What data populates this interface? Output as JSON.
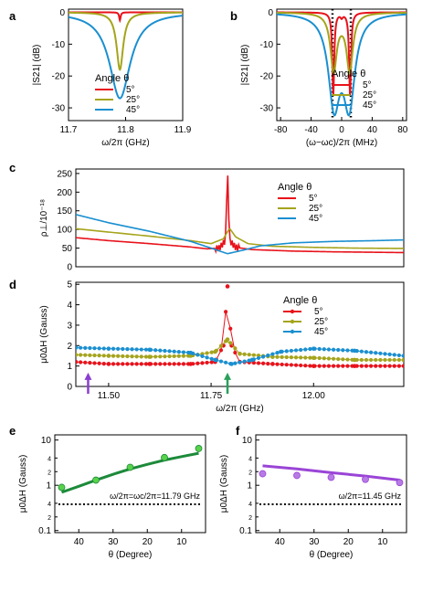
{
  "colors": {
    "red": "#e8121b",
    "olive": "#a5a41c",
    "blue": "#1a8fd0",
    "green": "#1c8a3a",
    "green_light": "#58d24a",
    "purple": "#9a45d6",
    "purple_light": "#b77be6",
    "arrow_purple": "#8a3fd0",
    "arrow_green": "#2aa05a"
  },
  "chart_data": [
    {
      "id": "a",
      "panel_label": "a",
      "type": "line",
      "xlabel": "ω/2π (GHz)",
      "ylabel": "|S21| (dB)",
      "xlim": [
        11.7,
        11.9
      ],
      "ylim": [
        -34,
        1
      ],
      "xticks": [
        "11.7",
        "11.8",
        "11.9"
      ],
      "yticks": [
        "0",
        "-10",
        "-20",
        "-30"
      ],
      "legend": {
        "title": "Angle θ",
        "entries": [
          "5°",
          "25°",
          "45°"
        ],
        "position": "bottom-right"
      },
      "series": [
        {
          "name": "5°",
          "color": "red",
          "curve": {
            "kind": "dip",
            "center": 11.79,
            "depth": -2.5,
            "width": 0.0015
          }
        },
        {
          "name": "25°",
          "color": "olive",
          "curve": {
            "kind": "dip",
            "center": 11.79,
            "depth": -18,
            "width": 0.007
          }
        },
        {
          "name": "45°",
          "color": "blue",
          "curve": {
            "kind": "dip",
            "center": 11.79,
            "depth": -27,
            "width": 0.022
          }
        }
      ]
    },
    {
      "id": "b",
      "panel_label": "b",
      "type": "line",
      "xlabel": "(ω−ωc)/2π (MHz)",
      "ylabel": "|S21| (dB)",
      "xlim": [
        -85,
        85
      ],
      "ylim": [
        -34,
        1
      ],
      "xticks": [
        "-80",
        "-40",
        "0",
        "40",
        "80"
      ],
      "yticks": [
        "0",
        "-10",
        "-20",
        "-30"
      ],
      "legend": {
        "title": "Angle θ",
        "entries": [
          "5°",
          "25°",
          "45°"
        ],
        "position": "bottom-right"
      },
      "dotted_lines_x": [
        -12,
        12
      ],
      "series": [
        {
          "name": "5°",
          "color": "red",
          "curve": {
            "kind": "double",
            "split": 11,
            "depth": -26,
            "width": 1.5
          }
        },
        {
          "name": "25°",
          "color": "olive",
          "curve": {
            "kind": "double",
            "split": 10.5,
            "depth": -18,
            "width": 5
          }
        },
        {
          "name": "45°",
          "color": "blue",
          "curve": {
            "kind": "double",
            "split": 10,
            "depth": -27,
            "width": 9
          }
        }
      ]
    },
    {
      "id": "c",
      "panel_label": "c",
      "type": "line",
      "xlabel": "",
      "ylabel": "ρ⊥/10⁻¹⁸",
      "xlim": [
        11.42,
        12.22
      ],
      "ylim": [
        0,
        262
      ],
      "xticks": [],
      "yticks": [
        "0",
        "50",
        "100",
        "150",
        "200",
        "250"
      ],
      "legend": {
        "title": "Angle θ",
        "entries": [
          "5°",
          "25°",
          "45°"
        ],
        "position": "top-right"
      },
      "series": [
        {
          "name": "5°",
          "color": "red",
          "points": [
            [
              11.42,
              78
            ],
            [
              11.5,
              70
            ],
            [
              11.6,
              62
            ],
            [
              11.7,
              53
            ],
            [
              11.74,
              48
            ],
            [
              11.77,
              50
            ],
            [
              11.785,
              70
            ],
            [
              11.79,
              262
            ],
            [
              11.795,
              70
            ],
            [
              11.81,
              52
            ],
            [
              11.85,
              46
            ],
            [
              11.95,
              42
            ],
            [
              12.05,
              40
            ],
            [
              12.22,
              38
            ]
          ]
        },
        {
          "name": "25°",
          "color": "olive",
          "points": [
            [
              11.42,
              102
            ],
            [
              11.5,
              93
            ],
            [
              11.6,
              82
            ],
            [
              11.7,
              70
            ],
            [
              11.75,
              62
            ],
            [
              11.78,
              75
            ],
            [
              11.795,
              103
            ],
            [
              11.81,
              80
            ],
            [
              11.84,
              62
            ],
            [
              11.9,
              55
            ],
            [
              12.0,
              52
            ],
            [
              12.1,
              50
            ],
            [
              12.22,
              49
            ]
          ]
        },
        {
          "name": "45°",
          "color": "blue",
          "points": [
            [
              11.42,
              140
            ],
            [
              11.5,
              118
            ],
            [
              11.6,
              95
            ],
            [
              11.7,
              68
            ],
            [
              11.75,
              50
            ],
            [
              11.79,
              35
            ],
            [
              11.83,
              45
            ],
            [
              11.87,
              56
            ],
            [
              11.95,
              64
            ],
            [
              12.05,
              68
            ],
            [
              12.15,
              70
            ],
            [
              12.22,
              72
            ]
          ]
        }
      ]
    },
    {
      "id": "d",
      "panel_label": "d",
      "type": "scatter",
      "xlabel": "ω/2π (GHz)",
      "ylabel": "μ0ΔH (Gauss)",
      "xlim": [
        11.42,
        12.22
      ],
      "ylim": [
        0,
        5.1
      ],
      "xticks": [
        "11.50",
        "11.75",
        "12.00"
      ],
      "yticks": [
        "0",
        "1",
        "2",
        "3",
        "4",
        "5"
      ],
      "legend": {
        "title": "Angle θ",
        "entries": [
          "5°",
          "25°",
          "45°"
        ],
        "position": "top-right"
      },
      "arrows": [
        {
          "x": 11.45,
          "color": "arrow_purple"
        },
        {
          "x": 11.79,
          "color": "arrow_green"
        }
      ],
      "series": [
        {
          "name": "5°",
          "color": "red",
          "dense": 1,
          "points": [
            [
              11.42,
              1.2
            ],
            [
              11.5,
              1.1
            ],
            [
              11.6,
              1.1
            ],
            [
              11.7,
              1.1
            ],
            [
              11.76,
              1.2
            ],
            [
              11.78,
              2.0
            ],
            [
              11.79,
              4.9
            ],
            [
              11.8,
              2.0
            ],
            [
              11.82,
              1.2
            ],
            [
              11.9,
              1.1
            ],
            [
              12.0,
              1.0
            ],
            [
              12.1,
              1.0
            ],
            [
              12.22,
              1.0
            ]
          ]
        },
        {
          "name": "25°",
          "color": "olive",
          "dense": 2,
          "points": [
            [
              11.42,
              1.55
            ],
            [
              11.5,
              1.5
            ],
            [
              11.6,
              1.45
            ],
            [
              11.7,
              1.5
            ],
            [
              11.76,
              1.7
            ],
            [
              11.79,
              2.3
            ],
            [
              11.82,
              1.6
            ],
            [
              11.9,
              1.45
            ],
            [
              12.0,
              1.4
            ],
            [
              12.1,
              1.3
            ],
            [
              12.22,
              1.3
            ]
          ]
        },
        {
          "name": "45°",
          "color": "blue",
          "dense": 3,
          "points": [
            [
              11.42,
              1.9
            ],
            [
              11.5,
              1.85
            ],
            [
              11.6,
              1.8
            ],
            [
              11.7,
              1.65
            ],
            [
              11.76,
              1.3
            ],
            [
              11.8,
              1.1
            ],
            [
              11.85,
              1.3
            ],
            [
              11.92,
              1.7
            ],
            [
              12.0,
              1.85
            ],
            [
              12.1,
              1.75
            ],
            [
              12.22,
              1.5
            ]
          ]
        }
      ]
    },
    {
      "id": "e",
      "panel_label": "e",
      "type": "line",
      "xlabel": "θ (Degree)",
      "ylabel": "μ0ΔH (Gauss)",
      "ylog": true,
      "xlim": [
        47,
        3
      ],
      "ylim": [
        0.09,
        13
      ],
      "xticks": [
        "40",
        "30",
        "20",
        "10"
      ],
      "yticks": [
        "0.1",
        "1",
        "10"
      ],
      "minor_yticks": [
        "2",
        "4",
        "2",
        "4"
      ],
      "annotation": "ω/2π=ωc/2π=11.79 GHz",
      "dotted_y": 0.38,
      "series": [
        {
          "name": "",
          "color": "green",
          "points": [
            [
              45,
              0.7
            ],
            [
              40,
              0.95
            ],
            [
              35,
              1.3
            ],
            [
              30,
              1.75
            ],
            [
              25,
              2.3
            ],
            [
              20,
              2.9
            ],
            [
              15,
              3.6
            ],
            [
              10,
              4.3
            ],
            [
              5,
              5.1
            ]
          ]
        },
        {
          "name": "",
          "color": "green_light",
          "markers": true,
          "points": [
            [
              45,
              0.9
            ],
            [
              35,
              1.3
            ],
            [
              25,
              2.5
            ],
            [
              15,
              4.1
            ],
            [
              5,
              6.5
            ]
          ]
        }
      ]
    },
    {
      "id": "f",
      "panel_label": "f",
      "type": "line",
      "xlabel": "θ (Degree)",
      "ylabel": "μ0ΔH (Gauss)",
      "ylog": true,
      "xlim": [
        47,
        3
      ],
      "ylim": [
        0.09,
        13
      ],
      "xticks": [
        "40",
        "30",
        "20",
        "10"
      ],
      "yticks": [
        "0.1",
        "1",
        "10"
      ],
      "minor_yticks": [
        "2",
        "4",
        "2",
        "4"
      ],
      "annotation": "ω/2π=11.45 GHz",
      "dotted_y": 0.38,
      "series": [
        {
          "name": "",
          "color": "purple",
          "points": [
            [
              45,
              2.7
            ],
            [
              35,
              2.3
            ],
            [
              25,
              1.9
            ],
            [
              15,
              1.6
            ],
            [
              5,
              1.3
            ]
          ]
        },
        {
          "name": "",
          "color": "purple_light",
          "markers": true,
          "points": [
            [
              45,
              1.8
            ],
            [
              35,
              1.65
            ],
            [
              25,
              1.5
            ],
            [
              15,
              1.35
            ],
            [
              5,
              1.15
            ]
          ]
        }
      ]
    }
  ]
}
